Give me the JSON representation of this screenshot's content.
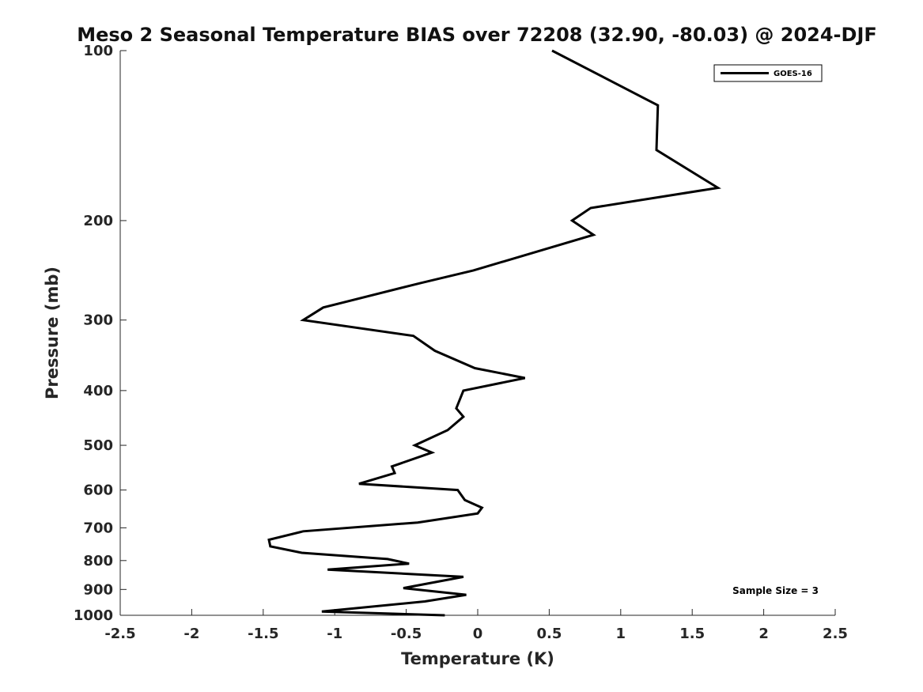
{
  "chart_data": {
    "type": "line",
    "title": "Meso 2 Seasonal Temperature BIAS over 72208 (32.90, -80.03) @ 2024-DJF",
    "xlabel": "Temperature (K)",
    "ylabel": "Pressure (mb)",
    "xlim": [
      -2.5,
      2.5
    ],
    "ylim": [
      1000,
      100
    ],
    "y_scale": "log",
    "y_reversed": true,
    "grid": false,
    "legend_position": "top-right",
    "x_ticks": [
      -2.5,
      -2,
      -1.5,
      -1,
      -0.5,
      0,
      0.5,
      1,
      1.5,
      2,
      2.5
    ],
    "x_tick_labels": [
      "-2.5",
      "-2",
      "-1.5",
      "-1",
      "-0.5",
      "0",
      "0.5",
      "1",
      "1.5",
      "2",
      "2.5"
    ],
    "y_ticks": [
      100,
      200,
      300,
      400,
      500,
      600,
      700,
      800,
      900,
      1000
    ],
    "y_tick_labels": [
      "100",
      "200",
      "300",
      "400",
      "500",
      "600",
      "700",
      "800",
      "900",
      "1000"
    ],
    "annotation": "Sample Size = 3",
    "series": [
      {
        "name": "GOES-16",
        "color": "#000000",
        "points": [
          {
            "x": 0.52,
            "p": 100
          },
          {
            "x": 1.26,
            "p": 125
          },
          {
            "x": 1.25,
            "p": 150
          },
          {
            "x": 1.68,
            "p": 175
          },
          {
            "x": 0.79,
            "p": 190
          },
          {
            "x": 0.66,
            "p": 200
          },
          {
            "x": 0.81,
            "p": 212
          },
          {
            "x": -0.03,
            "p": 245
          },
          {
            "x": -0.4,
            "p": 258
          },
          {
            "x": -1.08,
            "p": 285
          },
          {
            "x": -1.22,
            "p": 300
          },
          {
            "x": -0.45,
            "p": 320
          },
          {
            "x": -0.3,
            "p": 340
          },
          {
            "x": -0.02,
            "p": 365
          },
          {
            "x": 0.33,
            "p": 380
          },
          {
            "x": -0.1,
            "p": 400
          },
          {
            "x": -0.15,
            "p": 430
          },
          {
            "x": -0.1,
            "p": 445
          },
          {
            "x": -0.21,
            "p": 470
          },
          {
            "x": -0.44,
            "p": 500
          },
          {
            "x": -0.32,
            "p": 515
          },
          {
            "x": -0.6,
            "p": 545
          },
          {
            "x": -0.58,
            "p": 560
          },
          {
            "x": -0.83,
            "p": 585
          },
          {
            "x": -0.14,
            "p": 600
          },
          {
            "x": -0.09,
            "p": 625
          },
          {
            "x": 0.03,
            "p": 645
          },
          {
            "x": 0.0,
            "p": 660
          },
          {
            "x": -0.42,
            "p": 685
          },
          {
            "x": -1.22,
            "p": 710
          },
          {
            "x": -1.46,
            "p": 735
          },
          {
            "x": -1.45,
            "p": 755
          },
          {
            "x": -1.23,
            "p": 775
          },
          {
            "x": -0.63,
            "p": 795
          },
          {
            "x": -0.48,
            "p": 810
          },
          {
            "x": -1.05,
            "p": 830
          },
          {
            "x": -0.1,
            "p": 855
          },
          {
            "x": -0.52,
            "p": 895
          },
          {
            "x": -0.08,
            "p": 920
          },
          {
            "x": -0.37,
            "p": 945
          },
          {
            "x": -1.09,
            "p": 985
          },
          {
            "x": -0.23,
            "p": 1000
          }
        ]
      }
    ]
  }
}
